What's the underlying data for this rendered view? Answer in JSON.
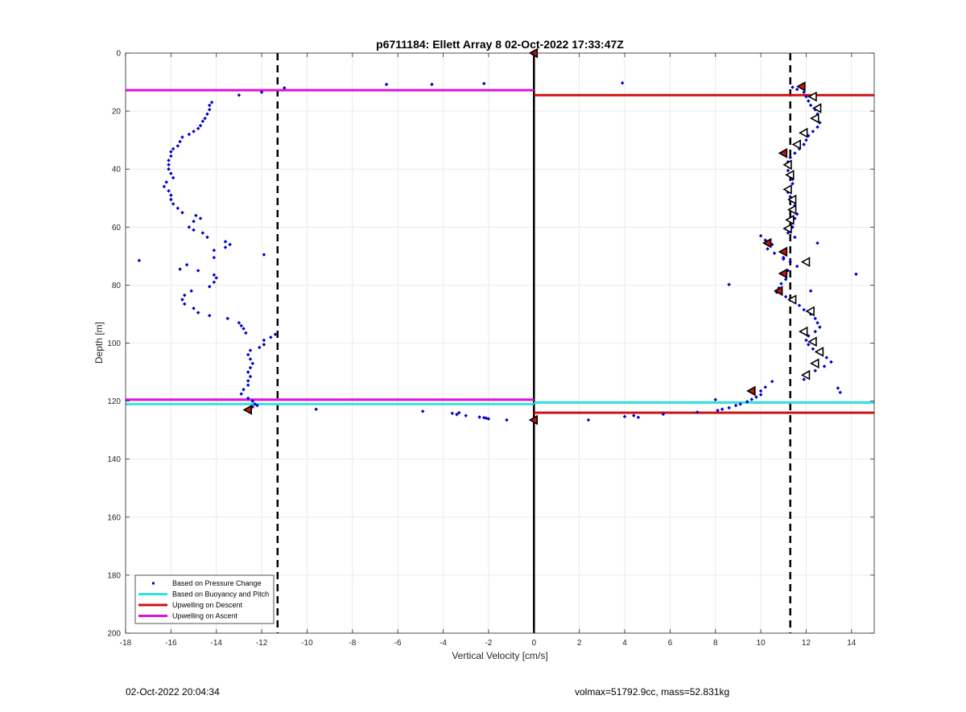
{
  "chart_data": {
    "type": "scatter",
    "title": "p6711184: Ellett Array 8 02-Oct-2022 17:33:47Z",
    "xlabel": "Vertical Velocity [cm/s]",
    "ylabel": "Depth [m]",
    "xlim": [
      -18,
      15
    ],
    "ylim": [
      0,
      200
    ],
    "y_reversed": true,
    "grid": true,
    "xticks": [
      -18,
      -16,
      -14,
      -12,
      -10,
      -8,
      -6,
      -4,
      -2,
      0,
      2,
      4,
      6,
      8,
      10,
      12,
      14
    ],
    "yticks": [
      0,
      20,
      40,
      60,
      80,
      100,
      120,
      140,
      160,
      180,
      200
    ],
    "legend_position": "bottom-left",
    "legend": [
      {
        "label": "Based on Pressure Change",
        "color": "#0000cc",
        "style": "dot"
      },
      {
        "label": "Based on Buoyancy and Pitch",
        "color": "#33e0e0",
        "style": "line"
      },
      {
        "label": "Upwelling on Descent",
        "color": "#cc1111",
        "style": "line"
      },
      {
        "label": "Upwelling on Ascent",
        "color": "#dd11dd",
        "style": "line"
      }
    ],
    "vlines": [
      {
        "x": -11.3,
        "style": "dashed",
        "color": "#000000"
      },
      {
        "x": 11.3,
        "style": "dashed",
        "color": "#000000"
      },
      {
        "x": 0,
        "style": "solid",
        "color": "#000000"
      }
    ],
    "series": [
      {
        "name": "Based on Pressure Change",
        "color": "#0000cc",
        "points": [
          [
            -13.0,
            14.5
          ],
          [
            -12.0,
            13.5
          ],
          [
            -11.0,
            12.0
          ],
          [
            -6.5,
            10.8
          ],
          [
            -4.5,
            10.8
          ],
          [
            -2.2,
            10.5
          ],
          [
            3.9,
            10.3
          ],
          [
            -14.2,
            17
          ],
          [
            -14.3,
            18
          ],
          [
            -14.3,
            19.5
          ],
          [
            -14.4,
            21
          ],
          [
            -14.5,
            22.5
          ],
          [
            -14.6,
            23.5
          ],
          [
            -14.7,
            25
          ],
          [
            -14.8,
            26
          ],
          [
            -15.0,
            27
          ],
          [
            -15.2,
            28
          ],
          [
            -15.5,
            29
          ],
          [
            -15.6,
            30.5
          ],
          [
            -15.7,
            32
          ],
          [
            -15.9,
            33
          ],
          [
            -16.0,
            34
          ],
          [
            -16.0,
            35.5
          ],
          [
            -16.1,
            37
          ],
          [
            -16.1,
            38.5
          ],
          [
            -16.1,
            40
          ],
          [
            -16.0,
            41.5
          ],
          [
            -15.9,
            43
          ],
          [
            -16.2,
            44.5
          ],
          [
            -16.3,
            46
          ],
          [
            -16.1,
            47.5
          ],
          [
            -16.0,
            49
          ],
          [
            -16.0,
            50.5
          ],
          [
            -15.9,
            52
          ],
          [
            -15.7,
            53.5
          ],
          [
            -15.5,
            55
          ],
          [
            -14.9,
            56
          ],
          [
            -14.7,
            57
          ],
          [
            -15.0,
            58
          ],
          [
            -15.2,
            60
          ],
          [
            -15.0,
            61
          ],
          [
            -14.6,
            62
          ],
          [
            -14.4,
            63.5
          ],
          [
            -13.6,
            65
          ],
          [
            -13.4,
            66
          ],
          [
            -13.6,
            67
          ],
          [
            -14.1,
            68
          ],
          [
            -14.1,
            70.5
          ],
          [
            -17.4,
            71.5
          ],
          [
            -15.3,
            73
          ],
          [
            -15.6,
            74.5
          ],
          [
            -14.8,
            75
          ],
          [
            -14.1,
            76.5
          ],
          [
            -14.0,
            77.5
          ],
          [
            -14.1,
            79
          ],
          [
            -14.3,
            80.5
          ],
          [
            -15.1,
            82
          ],
          [
            -15.4,
            83.5
          ],
          [
            -15.5,
            85
          ],
          [
            -15.4,
            86.5
          ],
          [
            -15.0,
            88
          ],
          [
            -14.8,
            89.5
          ],
          [
            -14.3,
            90.5
          ],
          [
            -13.5,
            91.5
          ],
          [
            -13.0,
            93
          ],
          [
            -12.9,
            94
          ],
          [
            -12.8,
            95
          ],
          [
            -12.7,
            96.5
          ],
          [
            -11.4,
            97
          ],
          [
            -11.6,
            98
          ],
          [
            -11.9,
            99
          ],
          [
            -11.9,
            100.5
          ],
          [
            -12.1,
            101.5
          ],
          [
            -12.5,
            102.5
          ],
          [
            -12.6,
            104
          ],
          [
            -12.5,
            105.5
          ],
          [
            -12.4,
            107
          ],
          [
            -12.5,
            108.5
          ],
          [
            -12.6,
            110
          ],
          [
            -12.5,
            111.5
          ],
          [
            -12.6,
            113
          ],
          [
            -12.6,
            114.5
          ],
          [
            -12.8,
            116
          ],
          [
            -12.9,
            117.5
          ],
          [
            -12.6,
            119
          ],
          [
            -12.4,
            120
          ],
          [
            -12.3,
            121
          ],
          [
            -12.4,
            122
          ],
          [
            -12.2,
            121.5
          ],
          [
            -11.9,
            69.5
          ],
          [
            -9.6,
            122.8
          ],
          [
            -4.9,
            123.5
          ],
          [
            -3.6,
            124.2
          ],
          [
            -3.4,
            124.6
          ],
          [
            -3.3,
            124.0
          ],
          [
            -3.0,
            125.0
          ],
          [
            -2.4,
            125.5
          ],
          [
            -2.2,
            125.7
          ],
          [
            -2.1,
            125.9
          ],
          [
            -2.0,
            126.1
          ],
          [
            -1.2,
            126.5
          ],
          [
            2.4,
            126.5
          ],
          [
            4.0,
            125.3
          ],
          [
            4.4,
            125.0
          ],
          [
            4.6,
            125.6
          ],
          [
            5.7,
            124.5
          ],
          [
            7.2,
            123.8
          ],
          [
            8.1,
            123.2
          ],
          [
            8.3,
            122.8
          ],
          [
            8.6,
            122.3
          ],
          [
            8.9,
            121.5
          ],
          [
            9.1,
            121.0
          ],
          [
            9.4,
            120.2
          ],
          [
            9.6,
            119.4
          ],
          [
            9.8,
            118.6
          ],
          [
            10.0,
            117.8
          ],
          [
            10.0,
            116.5
          ],
          [
            10.2,
            115.2
          ],
          [
            10.5,
            113.2
          ],
          [
            8.0,
            119.5
          ],
          [
            8.6,
            79.8
          ],
          [
            13.4,
            115.5
          ],
          [
            13.5,
            117
          ],
          [
            11.4,
            11.8
          ],
          [
            11.6,
            12.5
          ],
          [
            11.9,
            13.5
          ],
          [
            12.0,
            15
          ],
          [
            12.1,
            16.5
          ],
          [
            12.2,
            18
          ],
          [
            12.4,
            19.5
          ],
          [
            12.5,
            21
          ],
          [
            12.5,
            22.5
          ],
          [
            12.6,
            24
          ],
          [
            12.5,
            25.5
          ],
          [
            12.3,
            27
          ],
          [
            12.1,
            28.5
          ],
          [
            12.0,
            30
          ],
          [
            11.9,
            31.5
          ],
          [
            11.7,
            33
          ],
          [
            11.5,
            34.5
          ],
          [
            11.3,
            36
          ],
          [
            11.2,
            37.5
          ],
          [
            11.2,
            39
          ],
          [
            11.2,
            40.5
          ],
          [
            11.3,
            42
          ],
          [
            11.4,
            43.5
          ],
          [
            11.4,
            45
          ],
          [
            11.3,
            46.5
          ],
          [
            11.2,
            48
          ],
          [
            11.3,
            49.5
          ],
          [
            11.4,
            51
          ],
          [
            11.5,
            52.5
          ],
          [
            11.5,
            54
          ],
          [
            11.6,
            55.5
          ],
          [
            11.5,
            57
          ],
          [
            11.4,
            58.5
          ],
          [
            11.4,
            60
          ],
          [
            11.3,
            61.5
          ],
          [
            11.2,
            62
          ],
          [
            11.5,
            63.5
          ],
          [
            10.0,
            63
          ],
          [
            10.2,
            64.5
          ],
          [
            10.5,
            66
          ],
          [
            10.3,
            67.5
          ],
          [
            10.6,
            69
          ],
          [
            11.0,
            70.5
          ],
          [
            11.3,
            72
          ],
          [
            11.6,
            73.5
          ],
          [
            11.2,
            75
          ],
          [
            11.0,
            76.5
          ],
          [
            11.1,
            78
          ],
          [
            10.9,
            79.5
          ],
          [
            10.8,
            81
          ],
          [
            10.7,
            82.5
          ],
          [
            11.1,
            84
          ],
          [
            11.5,
            85.5
          ],
          [
            11.7,
            87
          ],
          [
            11.9,
            88.5
          ],
          [
            12.2,
            90
          ],
          [
            12.4,
            91.5
          ],
          [
            12.5,
            93
          ],
          [
            12.6,
            94.5
          ],
          [
            12.4,
            96
          ],
          [
            12.1,
            97.5
          ],
          [
            12.0,
            99
          ],
          [
            12.1,
            100.5
          ],
          [
            12.3,
            102
          ],
          [
            12.6,
            103.5
          ],
          [
            12.9,
            105
          ],
          [
            13.1,
            106.5
          ],
          [
            12.8,
            108
          ],
          [
            12.4,
            109.5
          ],
          [
            12.0,
            111
          ],
          [
            11.9,
            112.5
          ],
          [
            12.5,
            65.5
          ],
          [
            12.2,
            82
          ],
          [
            14.2,
            76.2
          ],
          [
            11.0,
            71
          ]
        ]
      },
      {
        "name": "Based on Buoyancy and Pitch",
        "color": "#33e0e0",
        "segments": [
          {
            "x1": -18,
            "x2": 0,
            "y": 121
          },
          {
            "x1": 0,
            "x2": 15,
            "y": 120.5
          }
        ]
      },
      {
        "name": "Upwelling on Descent",
        "color": "#cc1111",
        "segments": [
          {
            "x1": 0,
            "x2": 15,
            "y": 14.5
          },
          {
            "x1": 0,
            "x2": 15,
            "y": 124
          }
        ]
      },
      {
        "name": "Upwelling on Ascent",
        "color": "#dd11dd",
        "segments": [
          {
            "x1": -18,
            "x2": 0,
            "y": 12.8
          },
          {
            "x1": -18,
            "x2": 0,
            "y": 119.5
          }
        ]
      }
    ],
    "marker_series": [
      {
        "marker": "triangle-filled",
        "color": "#cc1111",
        "points": [
          [
            0,
            0
          ],
          [
            0,
            126.5
          ],
          [
            -12.6,
            123
          ],
          [
            11.8,
            11.5
          ],
          [
            11.0,
            34.5
          ],
          [
            10.3,
            65.5
          ],
          [
            11.0,
            68.5
          ],
          [
            11.0,
            76
          ],
          [
            10.8,
            82
          ],
          [
            9.6,
            116.5
          ]
        ]
      },
      {
        "marker": "triangle-open",
        "color": "#ffffff",
        "points": [
          [
            12.3,
            15
          ],
          [
            12.5,
            19
          ],
          [
            12.4,
            22.5
          ],
          [
            11.9,
            27.5
          ],
          [
            11.6,
            31.5
          ],
          [
            11.2,
            38.5
          ],
          [
            11.3,
            42
          ],
          [
            11.2,
            47
          ],
          [
            11.4,
            50.5
          ],
          [
            11.4,
            54
          ],
          [
            11.3,
            57.5
          ],
          [
            11.2,
            60.5
          ],
          [
            12.0,
            72
          ],
          [
            11.4,
            85
          ],
          [
            12.2,
            89
          ],
          [
            11.9,
            96
          ],
          [
            12.3,
            99.5
          ],
          [
            12.6,
            103
          ],
          [
            12.4,
            107
          ],
          [
            12.0,
            111
          ]
        ]
      }
    ]
  },
  "footer": {
    "timestamp": "02-Oct-2022 20:04:34",
    "info": "volmax=51792.9cc, mass=52.831kg"
  }
}
